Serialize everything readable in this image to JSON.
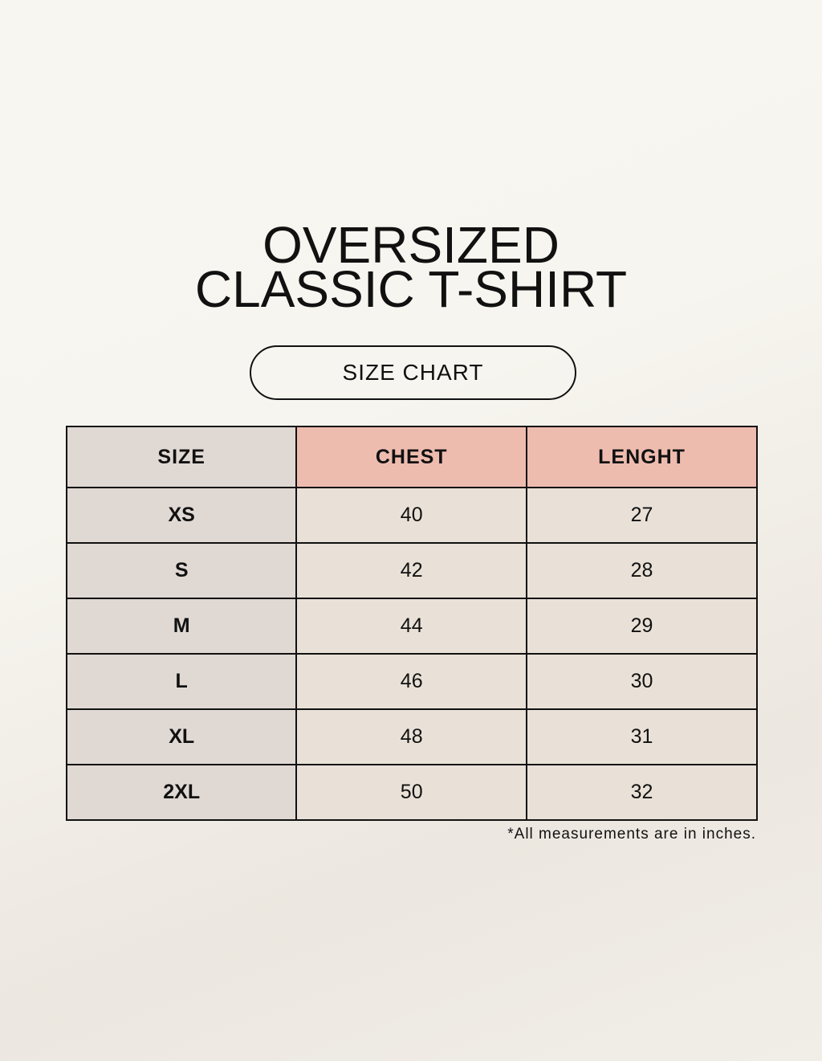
{
  "title": {
    "line1": "OVERSIZED",
    "line2": "CLASSIC T-SHIRT"
  },
  "subtitle": "SIZE CHART",
  "colors": {
    "size_column": "#e0d8d3",
    "header_accent": "#eebcaf",
    "cell": "#e9e1d7"
  },
  "table": {
    "headers": [
      "SIZE",
      "CHEST",
      "LENGHT"
    ],
    "rows": [
      [
        "XS",
        "40",
        "27"
      ],
      [
        "S",
        "42",
        "28"
      ],
      [
        "M",
        "44",
        "29"
      ],
      [
        "L",
        "46",
        "30"
      ],
      [
        "XL",
        "48",
        "31"
      ],
      [
        "2XL",
        "50",
        "32"
      ]
    ]
  },
  "footnote": "*All measurements are in inches."
}
